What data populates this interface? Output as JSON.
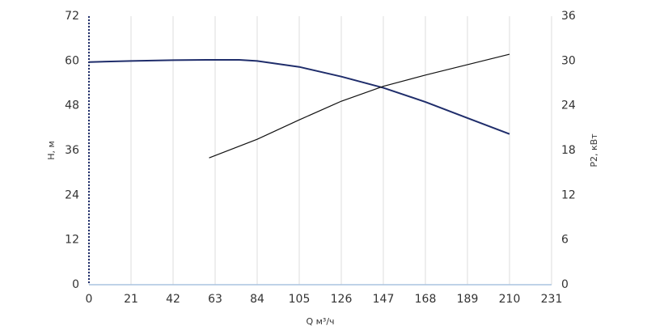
{
  "chart_data": {
    "type": "line",
    "xlabel": "Q м³/ч",
    "ylabel": "H, м",
    "y2label": "P2, кВт",
    "xlim": [
      0,
      231
    ],
    "xticks": [
      0,
      21,
      42,
      63,
      84,
      105,
      126,
      147,
      168,
      189,
      210,
      231
    ],
    "ylim": [
      0,
      72
    ],
    "yticks": [
      0,
      12,
      24,
      36,
      48,
      60,
      72
    ],
    "y2lim": [
      0,
      36
    ],
    "y2ticks": [
      0,
      6,
      12,
      18,
      24,
      30,
      36
    ],
    "grid": true,
    "series": [
      {
        "name": "H",
        "color": "#1f2d6b",
        "axis": "y",
        "x": [
          0,
          21,
          42,
          63,
          75,
          84,
          105,
          126,
          147,
          168,
          189,
          210
        ],
        "values": [
          59.7,
          60.0,
          60.2,
          60.3,
          60.3,
          60.0,
          58.4,
          55.8,
          52.8,
          49.0,
          44.7,
          40.4
        ]
      },
      {
        "name": "P2",
        "color": "#111111",
        "axis": "y2",
        "x": [
          60,
          84,
          105,
          126,
          147,
          168,
          189,
          210
        ],
        "values": [
          17.0,
          19.5,
          22.1,
          24.6,
          26.6,
          28.1,
          29.5,
          30.9
        ]
      }
    ]
  }
}
